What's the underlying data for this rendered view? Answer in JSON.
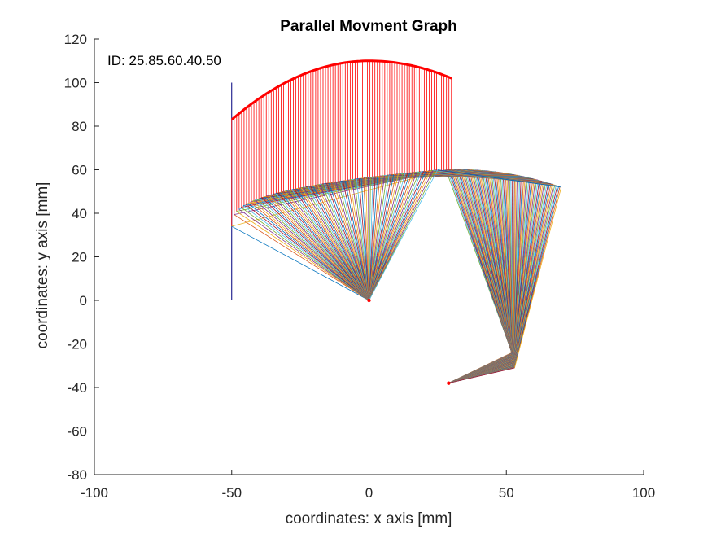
{
  "chart_data": {
    "type": "line",
    "title": "Parallel Movment Graph",
    "xlabel": "coordinates: x axis [mm]",
    "ylabel": "coordinates: y axis [mm]",
    "xlim": [
      -100,
      100
    ],
    "ylim": [
      -80,
      120
    ],
    "xticks": [
      -100,
      -50,
      0,
      50,
      100
    ],
    "yticks": [
      -80,
      -60,
      -40,
      -20,
      0,
      20,
      40,
      60,
      80,
      100,
      120
    ],
    "grid": false,
    "legend": "none",
    "annotation": "ID: 25.85.60.40.50",
    "pivots": [
      [
        0,
        0
      ],
      [
        29,
        -38
      ]
    ],
    "vertical_guide": {
      "x": -50,
      "y_from": 0,
      "y_to": 100
    },
    "sweep": {
      "frames": 90,
      "platform_left": {
        "x_from": -50,
        "x_to": 25,
        "y": [
          34,
          60
        ]
      },
      "platform_right": {
        "x_from": 28,
        "x_to": 70,
        "y": [
          60,
          52
        ]
      },
      "lower_joint": {
        "x_from": 52,
        "x_to": 53,
        "y_from": -24,
        "y_to": -31
      },
      "trace_top": {
        "x_from": -50,
        "x_to": 30,
        "y_peak": 110,
        "y_start": 83,
        "y_end": 102
      }
    },
    "colors": {
      "trace": "#ff0000",
      "pivot": "#ff0000",
      "guide": "#00007f",
      "series_cycle": [
        "#0072bd",
        "#d95319",
        "#edb120",
        "#7e2f8e",
        "#77ac30",
        "#4dbeee",
        "#a2142f"
      ]
    }
  }
}
